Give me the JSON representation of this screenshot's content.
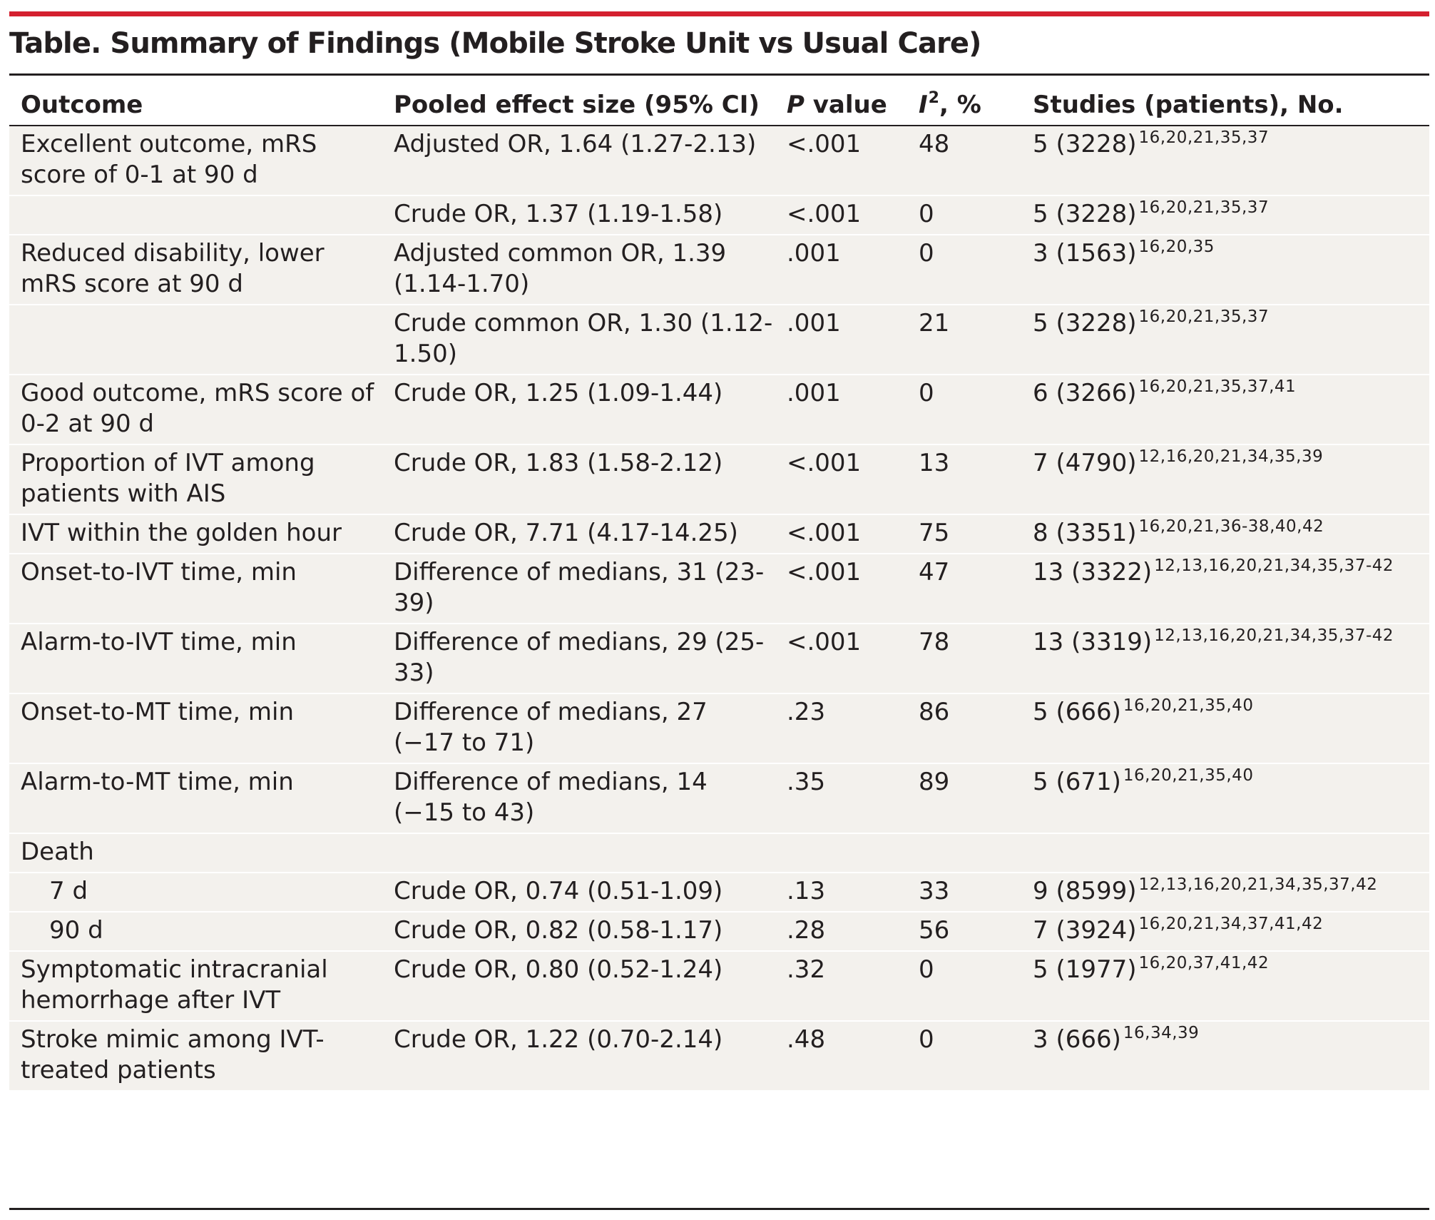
{
  "title": "Table. Summary of Findings (Mobile Stroke Unit vs Usual Care)",
  "colors": {
    "accent_rule": "#d4202f",
    "row_shading": "#f3f1ed",
    "text": "#231f20"
  },
  "headers": {
    "outcome": "Outcome",
    "effect": "Pooled effect size (95% CI)",
    "p_italic": "P",
    "p_rest": " value",
    "i2_italic": "I",
    "i2_sup": "2",
    "i2_rest": ", %",
    "studies": "Studies (patients), No."
  },
  "rows": [
    {
      "outcome": "Excellent outcome, mRS score of 0-1 at 90 d",
      "effect": "Adjusted OR, 1.64 (1.27-2.13)",
      "p": "<.001",
      "i2": "48",
      "studies": "5 (3228)",
      "refs": "16,20,21,35,37"
    },
    {
      "outcome": "",
      "effect": "Crude OR, 1.37 (1.19-1.58)",
      "p": "<.001",
      "i2": "0",
      "studies": "5 (3228)",
      "refs": "16,20,21,35,37"
    },
    {
      "outcome": "Reduced disability, lower mRS score at 90 d",
      "effect": "Adjusted common OR, 1.39 (1.14-1.70)",
      "p": ".001",
      "i2": "0",
      "studies": "3 (1563)",
      "refs": "16,20,35"
    },
    {
      "outcome": "",
      "effect": "Crude common OR, 1.30 (1.12-1.50)",
      "p": ".001",
      "i2": "21",
      "studies": "5 (3228)",
      "refs": "16,20,21,35,37"
    },
    {
      "outcome": "Good outcome, mRS score of 0-2 at 90 d",
      "effect": "Crude OR, 1.25 (1.09-1.44)",
      "p": ".001",
      "i2": "0",
      "studies": "6 (3266)",
      "refs": "16,20,21,35,37,41"
    },
    {
      "outcome": "Proportion of IVT among patients with AIS",
      "effect": "Crude OR, 1.83 (1.58-2.12)",
      "p": "<.001",
      "i2": "13",
      "studies": "7 (4790)",
      "refs": "12,16,20,21,34,35,39"
    },
    {
      "outcome": "IVT within the golden hour",
      "effect": "Crude OR, 7.71 (4.17-14.25)",
      "p": "<.001",
      "i2": "75",
      "studies": "8 (3351)",
      "refs": "16,20,21,36-38,40,42"
    },
    {
      "outcome": "Onset-to-IVT time, min",
      "effect": "Difference of medians, 31 (23-39)",
      "p": "<.001",
      "i2": "47",
      "studies": "13 (3322)",
      "refs": "12,13,16,20,21,34,35,37-42"
    },
    {
      "outcome": "Alarm-to-IVT time, min",
      "effect": "Difference of medians, 29 (25-33)",
      "p": "<.001",
      "i2": "78",
      "studies": "13 (3319)",
      "refs": "12,13,16,20,21,34,35,37-42"
    },
    {
      "outcome": "Onset-to-MT time, min",
      "effect": "Difference of medians, 27 (−17 to 71)",
      "p": ".23",
      "i2": "86",
      "studies": "5 (666)",
      "refs": "16,20,21,35,40"
    },
    {
      "outcome": "Alarm-to-MT time, min",
      "effect": "Difference of medians, 14 (−15 to 43)",
      "p": ".35",
      "i2": "89",
      "studies": "5 (671)",
      "refs": "16,20,21,35,40"
    },
    {
      "outcome": "Death",
      "effect": "",
      "p": "",
      "i2": "",
      "studies": "",
      "refs": ""
    },
    {
      "outcome": "7 d",
      "effect": "Crude OR, 0.74 (0.51-1.09)",
      "p": ".13",
      "i2": "33",
      "studies": "9 (8599)",
      "refs": "12,13,16,20,21,34,35,37,42"
    },
    {
      "outcome": "90 d",
      "effect": "Crude OR, 0.82 (0.58-1.17)",
      "p": ".28",
      "i2": "56",
      "studies": "7 (3924)",
      "refs": "16,20,21,34,37,41,42"
    },
    {
      "outcome": "Symptomatic intracranial hemorrhage after IVT",
      "effect": "Crude OR, 0.80 (0.52-1.24)",
      "p": ".32",
      "i2": "0",
      "studies": "5 (1977)",
      "refs": "16,20,37,41,42"
    },
    {
      "outcome": "Stroke mimic among IVT-treated patients",
      "effect": "Crude OR, 1.22 (0.70-2.14)",
      "p": ".48",
      "i2": "0",
      "studies": "3 (666)",
      "refs": "16,34,39"
    }
  ]
}
